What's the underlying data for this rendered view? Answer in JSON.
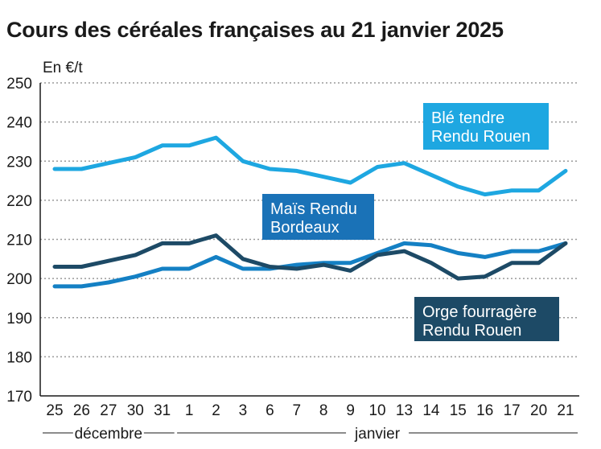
{
  "title": "Cours des céréales françaises au 21 janvier 2025",
  "chart_data": {
    "type": "line",
    "title": "Cours des céréales françaises au 21 janvier 2025",
    "ylabel": "En €/t",
    "xlabel": "",
    "ylim": [
      170,
      250
    ],
    "yticks": [
      170,
      180,
      190,
      200,
      210,
      220,
      230,
      240,
      250
    ],
    "grid": true,
    "categories": [
      "25",
      "26",
      "27",
      "30",
      "31",
      "1",
      "2",
      "3",
      "6",
      "7",
      "8",
      "9",
      "10",
      "13",
      "14",
      "15",
      "16",
      "17",
      "20",
      "21"
    ],
    "month_groups": [
      {
        "label": "décembre",
        "from": 0,
        "to": 4
      },
      {
        "label": "janvier",
        "from": 5,
        "to": 19
      }
    ],
    "series": [
      {
        "name": "Blé tendre Rendu Rouen",
        "label_lines": [
          "Blé tendre",
          "Rendu Rouen"
        ],
        "color": "#1ea7e1",
        "label_bg": "#1ea7e1",
        "values": [
          228,
          228,
          229.5,
          231,
          234,
          234,
          236,
          230,
          228,
          227.5,
          226,
          224.5,
          228.5,
          229.5,
          226.5,
          223.5,
          221.5,
          222.5,
          222.5,
          227.5
        ]
      },
      {
        "name": "Maïs Rendu Bordeaux",
        "label_lines": [
          "Maïs Rendu",
          "Bordeaux"
        ],
        "color": "#1480c4",
        "label_bg": "#1a72b7",
        "values": [
          198,
          198,
          199,
          200.5,
          202.5,
          202.5,
          205.5,
          202.5,
          202.5,
          203.5,
          204,
          204,
          206.5,
          209,
          208.5,
          206.5,
          205.5,
          207,
          207,
          209
        ]
      },
      {
        "name": "Orge fourragère Rendu Rouen",
        "label_lines": [
          "Orge fourragère",
          "Rendu Rouen"
        ],
        "color": "#1d4a66",
        "label_bg": "#1d4a66",
        "values": [
          203,
          203,
          204.5,
          206,
          209,
          209,
          211,
          205,
          203,
          202.5,
          203.5,
          202,
          206,
          207,
          204,
          200,
          200.5,
          204,
          204,
          209
        ]
      }
    ]
  }
}
